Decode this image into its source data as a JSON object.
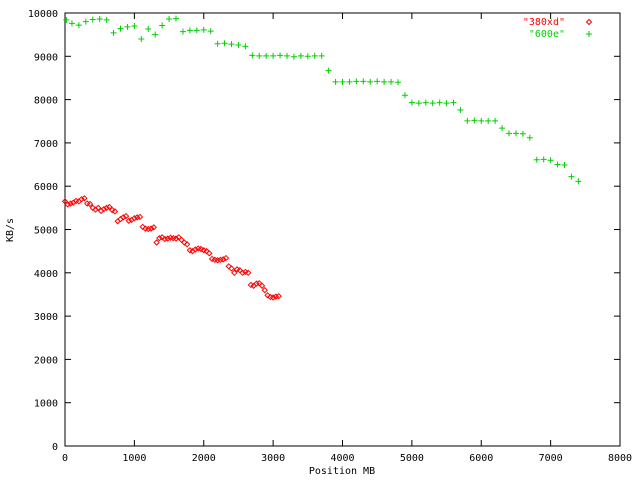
{
  "chart_data": {
    "type": "scatter",
    "title": "",
    "xlabel": "Position MB",
    "ylabel": "KB/s",
    "xlim": [
      0,
      8000
    ],
    "ylim": [
      0,
      10000
    ],
    "xticks": [
      0,
      1000,
      2000,
      3000,
      4000,
      5000,
      6000,
      7000,
      8000
    ],
    "yticks": [
      0,
      1000,
      2000,
      3000,
      4000,
      5000,
      6000,
      7000,
      8000,
      9000,
      10000
    ],
    "xtick_labels": [
      "0",
      "1000",
      "2000",
      "3000",
      "4000",
      "5000",
      "6000",
      "7000",
      "8000"
    ],
    "ytick_labels": [
      "0",
      "1000",
      "2000",
      "3000",
      "4000",
      "5000",
      "6000",
      "7000",
      "8000",
      "9000",
      "10000"
    ],
    "grid": false,
    "legend_position": "top-right",
    "series": [
      {
        "name": "\"380xd\"",
        "marker": "diamond",
        "color": "#ff0000",
        "points": [
          [
            0,
            5650
          ],
          [
            40,
            5580
          ],
          [
            80,
            5600
          ],
          [
            120,
            5620
          ],
          [
            160,
            5660
          ],
          [
            200,
            5650
          ],
          [
            240,
            5700
          ],
          [
            280,
            5720
          ],
          [
            320,
            5600
          ],
          [
            360,
            5590
          ],
          [
            400,
            5500
          ],
          [
            440,
            5460
          ],
          [
            480,
            5500
          ],
          [
            520,
            5430
          ],
          [
            560,
            5470
          ],
          [
            600,
            5500
          ],
          [
            640,
            5520
          ],
          [
            680,
            5450
          ],
          [
            720,
            5420
          ],
          [
            760,
            5190
          ],
          [
            800,
            5240
          ],
          [
            840,
            5280
          ],
          [
            880,
            5310
          ],
          [
            920,
            5200
          ],
          [
            960,
            5220
          ],
          [
            1000,
            5260
          ],
          [
            1040,
            5280
          ],
          [
            1080,
            5290
          ],
          [
            1120,
            5060
          ],
          [
            1160,
            5020
          ],
          [
            1200,
            5010
          ],
          [
            1240,
            5020
          ],
          [
            1280,
            5050
          ],
          [
            1320,
            4700
          ],
          [
            1360,
            4800
          ],
          [
            1400,
            4820
          ],
          [
            1440,
            4780
          ],
          [
            1480,
            4790
          ],
          [
            1520,
            4810
          ],
          [
            1560,
            4800
          ],
          [
            1600,
            4790
          ],
          [
            1640,
            4820
          ],
          [
            1680,
            4760
          ],
          [
            1720,
            4700
          ],
          [
            1760,
            4660
          ],
          [
            1800,
            4520
          ],
          [
            1840,
            4500
          ],
          [
            1880,
            4540
          ],
          [
            1920,
            4560
          ],
          [
            1960,
            4550
          ],
          [
            2000,
            4520
          ],
          [
            2040,
            4500
          ],
          [
            2080,
            4450
          ],
          [
            2120,
            4320
          ],
          [
            2160,
            4300
          ],
          [
            2200,
            4290
          ],
          [
            2240,
            4300
          ],
          [
            2280,
            4310
          ],
          [
            2320,
            4340
          ],
          [
            2360,
            4150
          ],
          [
            2400,
            4100
          ],
          [
            2440,
            4000
          ],
          [
            2480,
            4080
          ],
          [
            2520,
            4060
          ],
          [
            2560,
            4000
          ],
          [
            2600,
            4020
          ],
          [
            2640,
            4000
          ],
          [
            2680,
            3720
          ],
          [
            2720,
            3700
          ],
          [
            2760,
            3750
          ],
          [
            2800,
            3760
          ],
          [
            2840,
            3700
          ],
          [
            2880,
            3600
          ],
          [
            2920,
            3480
          ],
          [
            2960,
            3440
          ],
          [
            3000,
            3430
          ],
          [
            3040,
            3450
          ],
          [
            3080,
            3460
          ]
        ]
      },
      {
        "name": "\"600e\"",
        "marker": "plus",
        "color": "#00d000",
        "points": [
          [
            20,
            9840
          ],
          [
            100,
            9760
          ],
          [
            200,
            9720
          ],
          [
            300,
            9800
          ],
          [
            400,
            9850
          ],
          [
            500,
            9860
          ],
          [
            600,
            9840
          ],
          [
            700,
            9540
          ],
          [
            800,
            9640
          ],
          [
            900,
            9680
          ],
          [
            1000,
            9700
          ],
          [
            1100,
            9400
          ],
          [
            1200,
            9630
          ],
          [
            1300,
            9500
          ],
          [
            1400,
            9710
          ],
          [
            1500,
            9860
          ],
          [
            1600,
            9870
          ],
          [
            1700,
            9570
          ],
          [
            1800,
            9600
          ],
          [
            1900,
            9600
          ],
          [
            2000,
            9610
          ],
          [
            2100,
            9580
          ],
          [
            2200,
            9290
          ],
          [
            2300,
            9300
          ],
          [
            2400,
            9280
          ],
          [
            2500,
            9260
          ],
          [
            2600,
            9230
          ],
          [
            2700,
            9020
          ],
          [
            2800,
            9010
          ],
          [
            2900,
            9010
          ],
          [
            3000,
            9010
          ],
          [
            3100,
            9020
          ],
          [
            3200,
            9010
          ],
          [
            3300,
            8990
          ],
          [
            3400,
            9010
          ],
          [
            3500,
            9000
          ],
          [
            3600,
            9010
          ],
          [
            3700,
            9010
          ],
          [
            3800,
            8670
          ],
          [
            3900,
            8410
          ],
          [
            4000,
            8410
          ],
          [
            4100,
            8410
          ],
          [
            4200,
            8420
          ],
          [
            4300,
            8420
          ],
          [
            4400,
            8410
          ],
          [
            4500,
            8420
          ],
          [
            4600,
            8410
          ],
          [
            4700,
            8410
          ],
          [
            4800,
            8400
          ],
          [
            4900,
            8100
          ],
          [
            5000,
            7930
          ],
          [
            5100,
            7920
          ],
          [
            5200,
            7930
          ],
          [
            5300,
            7920
          ],
          [
            5400,
            7930
          ],
          [
            5500,
            7920
          ],
          [
            5600,
            7930
          ],
          [
            5700,
            7760
          ],
          [
            5800,
            7510
          ],
          [
            5900,
            7520
          ],
          [
            6000,
            7510
          ],
          [
            6100,
            7510
          ],
          [
            6200,
            7510
          ],
          [
            6300,
            7340
          ],
          [
            6400,
            7220
          ],
          [
            6500,
            7220
          ],
          [
            6600,
            7210
          ],
          [
            6700,
            7120
          ],
          [
            6800,
            6610
          ],
          [
            6900,
            6620
          ],
          [
            7000,
            6600
          ],
          [
            7100,
            6500
          ],
          [
            7200,
            6490
          ],
          [
            7300,
            6220
          ],
          [
            7400,
            6110
          ]
        ]
      }
    ]
  }
}
